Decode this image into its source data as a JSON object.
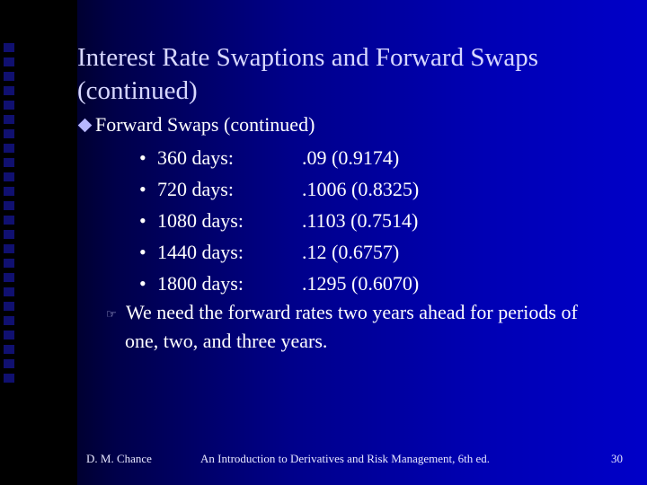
{
  "slide": {
    "title_line1": "Interest Rate Swaptions and Forward Swaps",
    "title_line2": "(continued)",
    "level1": "Forward Swaps (continued)",
    "rows": [
      {
        "days": "360 days:",
        "value": ".09 (0.9174)"
      },
      {
        "days": "720 days:",
        "value": ".1006 (0.8325)"
      },
      {
        "days": "1080 days:",
        "value": ".1103 (0.7514)"
      },
      {
        "days": "1440 days:",
        "value": ".12 (0.6757)"
      },
      {
        "days": "1800 days:",
        "value": ".1295 (0.6070)"
      }
    ],
    "bullet_char": "•",
    "note_line1": "We need the forward rates two years ahead for periods of",
    "note_line2": "one, two, and three years.",
    "note_icon": "pointing-hand-icon",
    "level1_icon": "diamond-icon"
  },
  "footer": {
    "author": "D. M. Chance",
    "book": "An Introduction to Derivatives and Risk Management, 6th ed.",
    "page": "30"
  }
}
